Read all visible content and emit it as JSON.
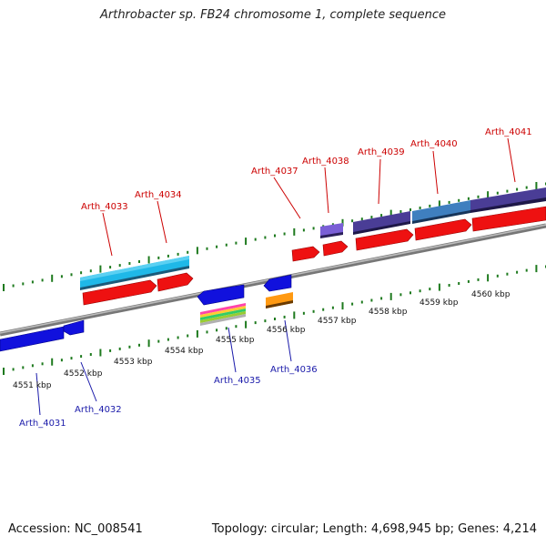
{
  "title": "Arthrobacter sp. FB24 chromosome 1, complete sequence",
  "footer": {
    "accession": "Accession: NC_008541",
    "summary": "Topology: circular; Length: 4,698,945 bp; Genes: 4,214"
  },
  "colors": {
    "top_strand_label": "#cc0000",
    "bottom_strand_label": "#1a1aaa",
    "tick": "#1e7a1e",
    "chromosome": "#808080"
  },
  "scale_labels": [
    "4551 kbp",
    "4552 kbp",
    "4553 kbp",
    "4554 kbp",
    "4555 kbp",
    "4556 kbp",
    "4557 kbp",
    "4558 kbp",
    "4559 kbp",
    "4560 kbp"
  ],
  "top_genes": [
    "Arth_4033",
    "Arth_4034",
    "Arth_4037",
    "Arth_4038",
    "Arth_4039",
    "Arth_4040",
    "Arth_4041"
  ],
  "bottom_genes": [
    "Arth_4031",
    "Arth_4032",
    "Arth_4035",
    "Arth_4036"
  ]
}
